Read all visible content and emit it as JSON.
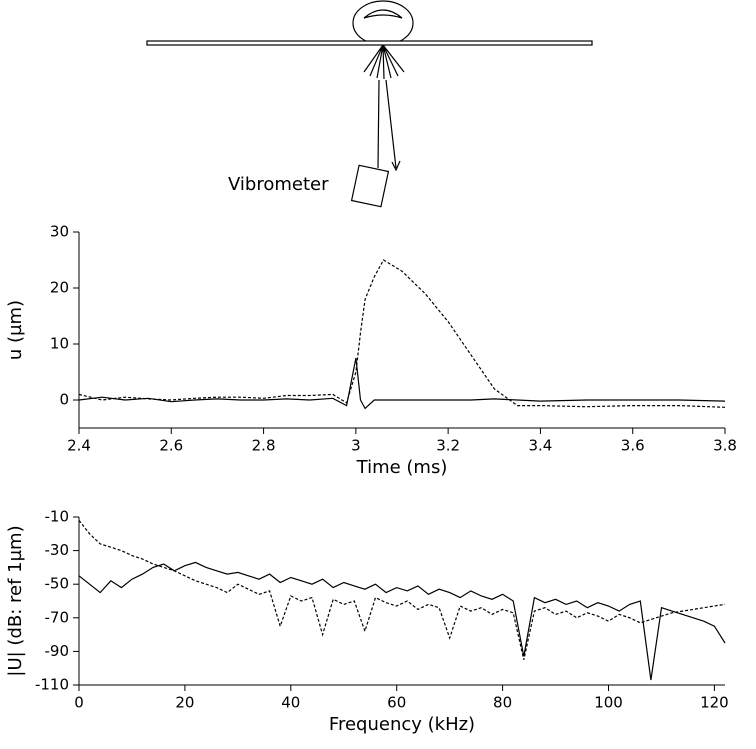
{
  "diagram": {
    "label": "Vibrometer"
  },
  "chart_data": [
    {
      "type": "line",
      "xlabel": "Time (ms)",
      "ylabel": "u (µm)",
      "x": [
        2.4,
        2.45,
        2.5,
        2.55,
        2.6,
        2.65,
        2.7,
        2.75,
        2.8,
        2.85,
        2.9,
        2.95,
        2.98,
        3.0,
        3.01,
        3.02,
        3.04,
        3.06,
        3.1,
        3.15,
        3.2,
        3.25,
        3.3,
        3.35,
        3.4,
        3.5,
        3.6,
        3.7,
        3.8
      ],
      "series": [
        {
          "color": "#000000",
          "style": "solid",
          "values": [
            0,
            0.5,
            0,
            0.3,
            -0.3,
            0,
            0.2,
            0,
            0,
            0.2,
            0,
            0.3,
            -1,
            7.5,
            0,
            -1.5,
            0,
            0,
            0,
            0,
            0,
            0,
            0.2,
            0,
            -0.2,
            0,
            0,
            0,
            -0.2
          ]
        },
        {
          "color": "#000000",
          "style": "dashed",
          "values": [
            1,
            0,
            0.5,
            0.2,
            0,
            0.3,
            0.5,
            0.5,
            0.3,
            0.8,
            0.8,
            1,
            -0.5,
            5,
            12,
            18,
            22,
            25,
            23,
            19,
            14,
            8,
            2,
            -1,
            -1,
            -1.2,
            -1,
            -1,
            -1.3
          ]
        }
      ],
      "xlim": [
        2.4,
        3.8
      ],
      "ylim": [
        -5,
        30
      ],
      "xticks": [
        2.4,
        2.6,
        2.8,
        3,
        3.2,
        3.4,
        3.6,
        3.8
      ],
      "yticks": [
        0,
        10,
        20,
        30
      ]
    },
    {
      "type": "line",
      "xlabel": "Frequency (kHz)",
      "ylabel": "|U| (dB: ref 1µm)",
      "x": [
        0,
        2,
        4,
        6,
        8,
        10,
        12,
        14,
        16,
        18,
        20,
        22,
        24,
        26,
        28,
        30,
        32,
        34,
        36,
        38,
        40,
        42,
        44,
        46,
        48,
        50,
        52,
        54,
        56,
        58,
        60,
        62,
        64,
        66,
        68,
        70,
        72,
        74,
        76,
        78,
        80,
        82,
        84,
        86,
        88,
        90,
        92,
        94,
        96,
        98,
        100,
        102,
        104,
        106,
        108,
        110,
        112,
        114,
        116,
        118,
        120,
        122
      ],
      "series": [
        {
          "color": "#000000",
          "style": "solid",
          "values": [
            -45,
            -50,
            -55,
            -48,
            -52,
            -47,
            -44,
            -40,
            -38,
            -42,
            -39,
            -37,
            -40,
            -42,
            -44,
            -43,
            -45,
            -47,
            -44,
            -49,
            -46,
            -48,
            -50,
            -47,
            -52,
            -49,
            -51,
            -53,
            -50,
            -55,
            -52,
            -54,
            -51,
            -56,
            -53,
            -55,
            -58,
            -54,
            -57,
            -59,
            -56,
            -60,
            -93,
            -58,
            -61,
            -59,
            -62,
            -60,
            -64,
            -61,
            -63,
            -66,
            -62,
            -60,
            -107,
            -64,
            -66,
            -68,
            -70,
            -72,
            -75,
            -85
          ]
        },
        {
          "color": "#000000",
          "style": "dashed",
          "values": [
            -12,
            -20,
            -26,
            -28,
            -30,
            -33,
            -35,
            -38,
            -40,
            -42,
            -45,
            -48,
            -50,
            -52,
            -55,
            -50,
            -53,
            -56,
            -54,
            -75,
            -57,
            -60,
            -58,
            -80,
            -59,
            -62,
            -60,
            -78,
            -58,
            -61,
            -63,
            -60,
            -65,
            -62,
            -64,
            -82,
            -63,
            -66,
            -64,
            -68,
            -65,
            -67,
            -95,
            -66,
            -64,
            -68,
            -66,
            -70,
            -67,
            -69,
            -72,
            -68,
            -70,
            -73,
            -71,
            -69,
            -67,
            -66,
            -65,
            -64,
            -63,
            -62
          ]
        }
      ],
      "xlim": [
        0,
        122
      ],
      "ylim": [
        -110,
        -10
      ],
      "xticks": [
        0,
        20,
        40,
        60,
        80,
        100,
        120
      ],
      "yticks": [
        -110,
        -90,
        -70,
        -50,
        -30,
        -10
      ]
    }
  ]
}
